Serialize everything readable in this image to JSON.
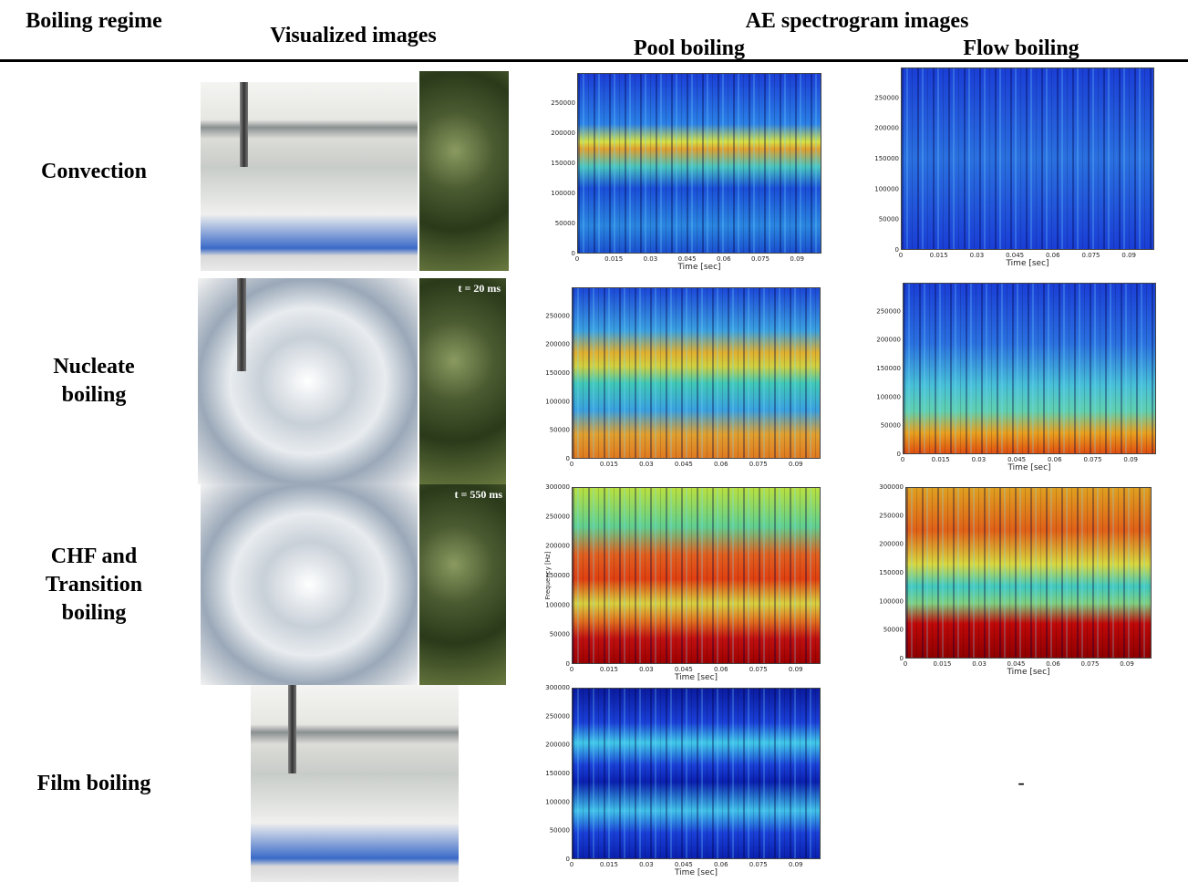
{
  "header": {
    "regime": "Boiling regime",
    "visualized": "Visualized images",
    "group": "AE spectrogram images",
    "pool": "Pool boiling",
    "flow": "Flow boiling"
  },
  "rows": [
    {
      "regime": "Convection",
      "pool": {
        "x_label": "Time [sec]",
        "x_ticks": [
          "0",
          "0.015",
          "0.03",
          "0.045",
          "0.06",
          "0.075",
          "0.09"
        ],
        "y_ticks": [
          "0",
          "50000",
          "100000",
          "150000",
          "200000",
          "250000"
        ]
      },
      "flow": {
        "x_label": "Time [sec]",
        "x_ticks": [
          "0",
          "0.015",
          "0.03",
          "0.045",
          "0.06",
          "0.075",
          "0.09"
        ],
        "y_ticks": [
          "0",
          "50000",
          "100000",
          "150000",
          "200000",
          "250000"
        ]
      }
    },
    {
      "regime": "Nucleate boiling",
      "annotation": "t = 20 ms",
      "pool": {
        "x_label": "",
        "x_ticks": [
          "0",
          "0.015",
          "0.03",
          "0.045",
          "0.06",
          "0.075",
          "0.09"
        ],
        "y_ticks": [
          "0",
          "50000",
          "100000",
          "150000",
          "200000",
          "250000"
        ]
      },
      "flow": {
        "x_label": "Time [sec]",
        "x_ticks": [
          "0",
          "0.015",
          "0.03",
          "0.045",
          "0.06",
          "0.075",
          "0.09"
        ],
        "y_ticks": [
          "0",
          "50000",
          "100000",
          "150000",
          "200000",
          "250000"
        ]
      }
    },
    {
      "regime": "CHF and Transition boiling",
      "annotation": "t = 550 ms",
      "pool": {
        "x_label": "Time [sec]",
        "y_label": "Frequency [Hz]",
        "x_ticks": [
          "0",
          "0.015",
          "0.03",
          "0.045",
          "0.06",
          "0.075",
          "0.09"
        ],
        "y_ticks": [
          "0",
          "50000",
          "100000",
          "150000",
          "200000",
          "250000",
          "300000"
        ]
      },
      "flow": {
        "x_label": "Time [sec]",
        "x_ticks": [
          "0",
          "0.015",
          "0.03",
          "0.045",
          "0.06",
          "0.075",
          "0.09"
        ],
        "y_ticks": [
          "0",
          "50000",
          "100000",
          "150000",
          "200000",
          "250000",
          "300000"
        ]
      }
    },
    {
      "regime": "Film boiling",
      "pool": {
        "x_label": "Time [sec]",
        "x_ticks": [
          "0",
          "0.015",
          "0.03",
          "0.045",
          "0.06",
          "0.075",
          "0.09"
        ],
        "y_ticks": [
          "0",
          "50000",
          "100000",
          "150000",
          "200000",
          "250000",
          "300000"
        ]
      },
      "flow": "-"
    }
  ]
}
